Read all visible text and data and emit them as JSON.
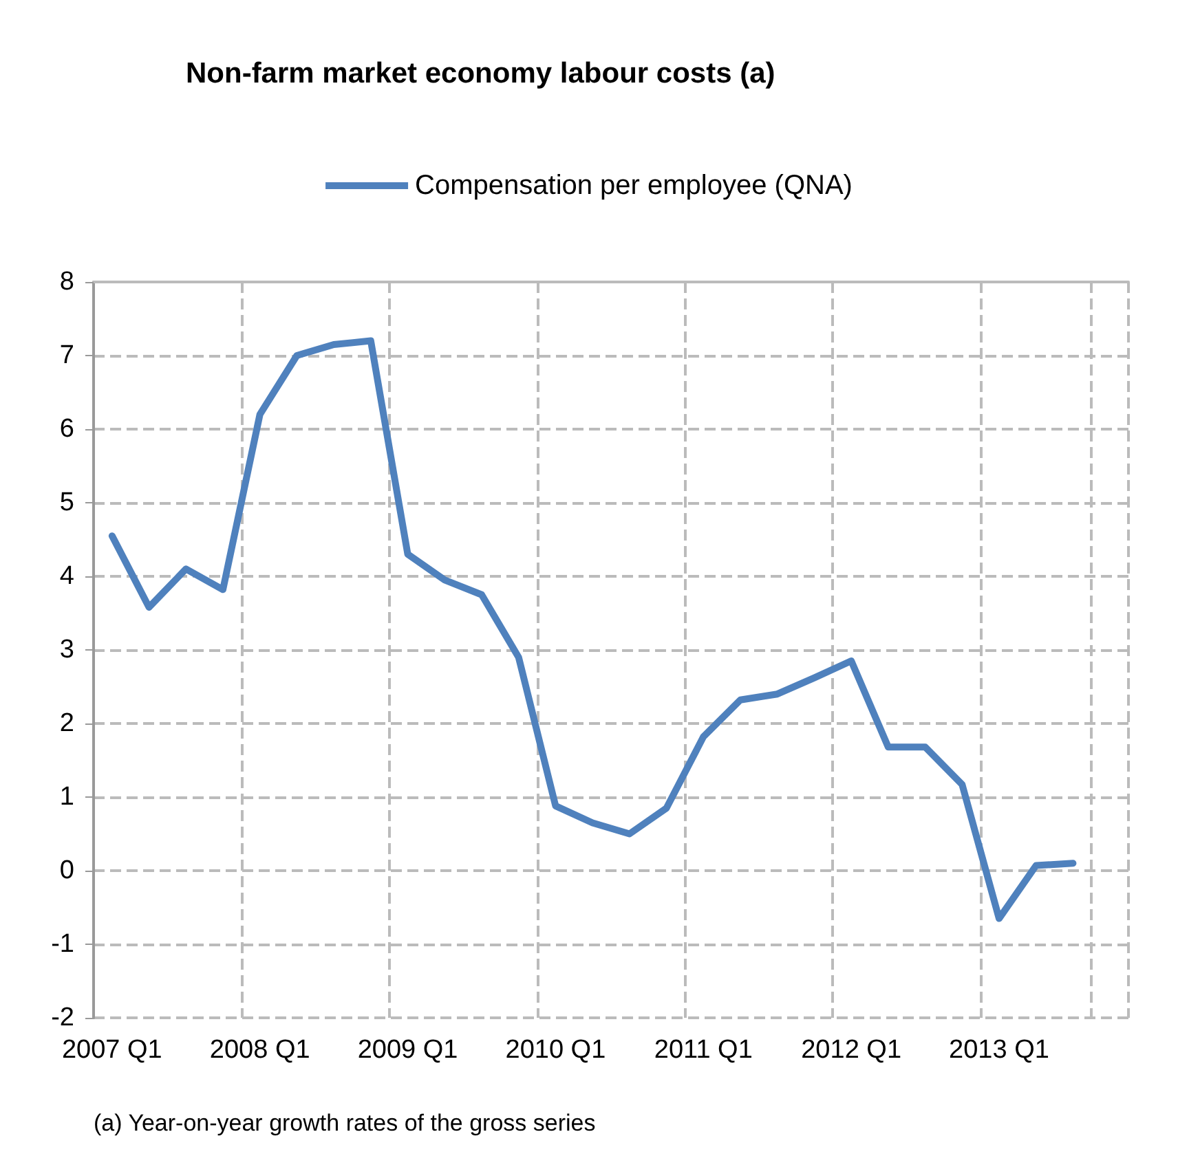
{
  "chart_data": {
    "type": "line",
    "title": "Non-farm market economy labour costs (a)",
    "categories": [
      "2007 Q1",
      null,
      null,
      null,
      "2008 Q1",
      null,
      null,
      null,
      "2009 Q1",
      null,
      null,
      null,
      "2010 Q1",
      null,
      null,
      null,
      "2011 Q1",
      null,
      null,
      null,
      "2012 Q1",
      null,
      null,
      null,
      "2013 Q1",
      null,
      null,
      null
    ],
    "series": [
      {
        "name": "Compensation per employee (QNA)",
        "color": "#4f81bd",
        "values": [
          4.55,
          3.58,
          4.1,
          3.82,
          6.2,
          7.0,
          7.15,
          7.2,
          4.3,
          3.95,
          3.75,
          2.9,
          0.88,
          0.65,
          0.5,
          0.85,
          1.82,
          2.32,
          2.4,
          2.62,
          2.85,
          1.68,
          1.68,
          1.17,
          -0.65,
          0.07,
          0.1,
          null
        ]
      }
    ],
    "ylim": [
      -2,
      8
    ],
    "yticks": [
      -2,
      -1,
      0,
      1,
      2,
      3,
      4,
      5,
      6,
      7,
      8
    ],
    "grid": true,
    "legend": "top",
    "marker": "none",
    "line_style": "solid",
    "annotations": [
      "(a) Year-on-year growth rates of the gross series"
    ]
  }
}
